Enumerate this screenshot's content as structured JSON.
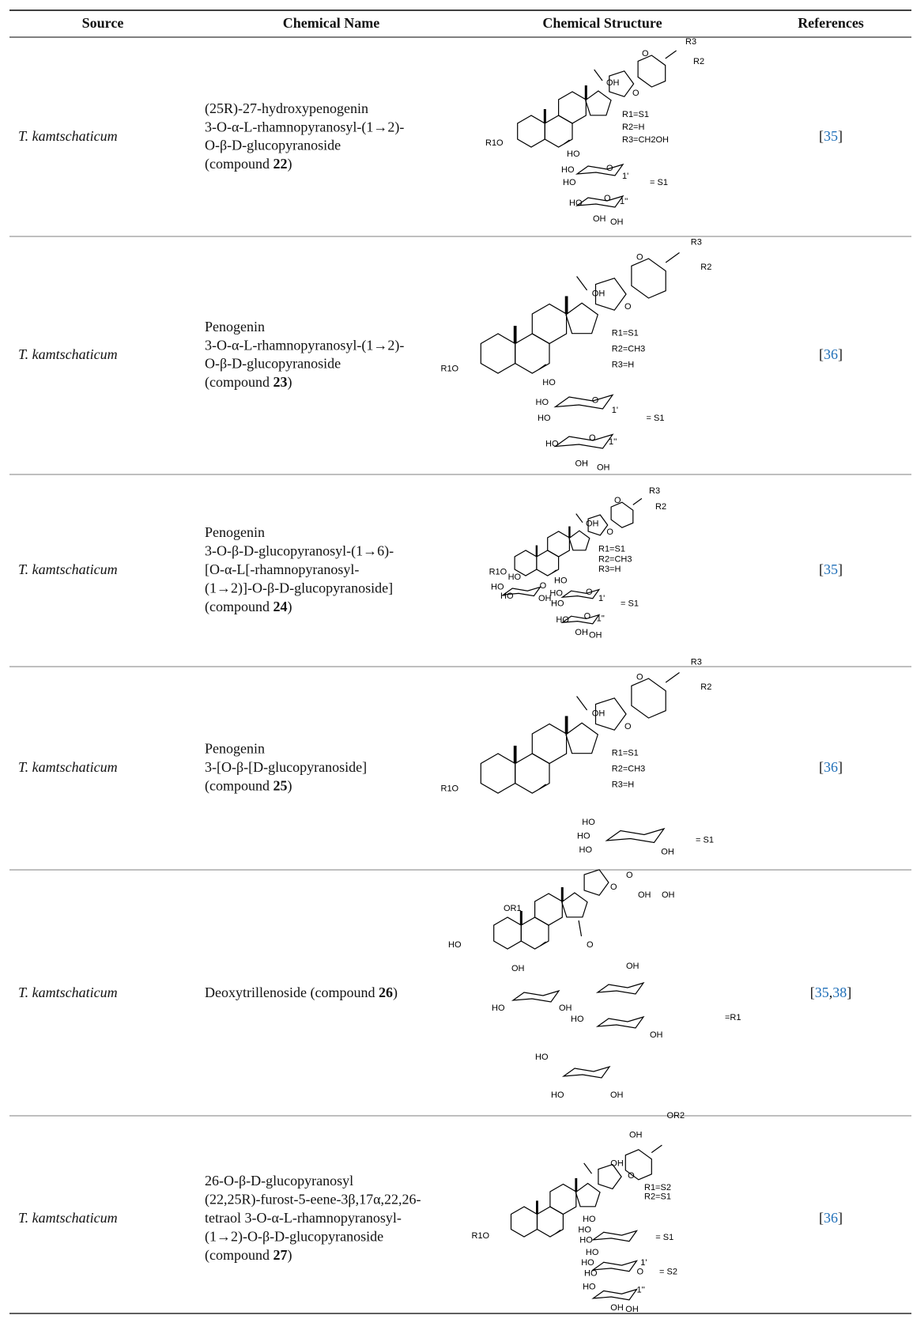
{
  "header": {
    "columns": [
      "Source",
      "Chemical Name",
      "Chemical Structure",
      "References"
    ]
  },
  "rows": [
    {
      "source": "T. kamtschaticum",
      "name_lines": [
        "(25R)-27-hydroxypenogenin",
        "3-O-α-L-rhamnopyranosyl-(1→2)-",
        "O-β-D-glucopyranoside",
        "(compound 22)"
      ],
      "structure_labels": [
        "R3",
        "R2",
        "OH",
        "O",
        "O",
        "R1=S1",
        "R2=H",
        "R3=CH2OH",
        "R1O",
        "HO",
        "HO",
        "HO",
        "O",
        "1'",
        "= S1",
        "HO",
        "O",
        "1''",
        "OH",
        "OH"
      ],
      "references": [
        {
          "text": "["
        },
        {
          "text": "35",
          "link": true
        },
        {
          "text": "]"
        }
      ]
    },
    {
      "source": "T. kamtschaticum",
      "name_lines": [
        "Penogenin",
        "3-O-α-L-rhamnopyranosyl-(1→2)-",
        "O-β-D-glucopyranoside",
        "(compound 23)"
      ],
      "structure_labels": [
        "R3",
        "R2",
        "OH",
        "O",
        "O",
        "R1=S1",
        "R2=CH3",
        "R3=H",
        "R1O",
        "HO",
        "HO",
        "HO",
        "O",
        "1'",
        "= S1",
        "HO",
        "O",
        "1''",
        "OH",
        "OH"
      ],
      "references": [
        {
          "text": "["
        },
        {
          "text": "36",
          "link": true
        },
        {
          "text": "]"
        }
      ]
    },
    {
      "source": "T. kamtschaticum",
      "name_lines": [
        "Penogenin",
        "3-O-β-D-glucopyranosyl-(1→6)-",
        "[O-α-L[-rhamnopyranosyl-",
        "(1→2)]-O-β-D-glucopyranoside]",
        "(compound 24)"
      ],
      "structure_labels": [
        "R3",
        "R2",
        "OH",
        "O",
        "O",
        "R1=S1",
        "R2=CH3",
        "R3=H",
        "R1O",
        "HO",
        "HO",
        "HO",
        "O",
        "1'",
        "= S1",
        "HO",
        "O",
        "1''",
        "OH",
        "OH",
        "HO",
        "HO",
        "HO",
        "OH",
        "O"
      ],
      "references": [
        {
          "text": "["
        },
        {
          "text": "35",
          "link": true
        },
        {
          "text": "]"
        }
      ]
    },
    {
      "source": "T. kamtschaticum",
      "name_lines": [
        "Penogenin",
        "3-[O-β-[D-glucopyranoside]",
        "(compound 25)"
      ],
      "structure_labels": [
        "R3",
        "R2",
        "OH",
        "O",
        "O",
        "R1=S1",
        "R2=CH3",
        "R3=H",
        "R1O",
        "HO",
        "HO",
        "HO",
        "OH",
        "= S1"
      ],
      "references": [
        {
          "text": "["
        },
        {
          "text": "36",
          "link": true
        },
        {
          "text": "]"
        }
      ]
    },
    {
      "source": "T. kamtschaticum",
      "name_lines": [
        "Deoxytrillenoside (compound 26)"
      ],
      "structure_labels": [
        "OR1",
        "HO",
        "O",
        "O",
        "OH",
        "OH",
        "O",
        "OH",
        "HO",
        "OH",
        "OH",
        "HO",
        "OH",
        "HO",
        "HO",
        "OH",
        "=R1"
      ],
      "references": [
        {
          "text": "["
        },
        {
          "text": "35",
          "link": true
        },
        {
          "text": ","
        },
        {
          "text": "38",
          "link": true
        },
        {
          "text": "]"
        }
      ]
    },
    {
      "source": "T. kamtschaticum",
      "name_lines": [
        "26-O-β-D-glucopyranosyl",
        "(22,25R)-furost-5-eene-3β,17α,22,26-",
        "tetraol 3-O-α-L-rhamnopyranosyl-",
        "(1→2)-O-β-D-glucopyranoside",
        "(compound 27)"
      ],
      "structure_labels": [
        "OR2",
        "OH",
        "OH",
        "O",
        "R1=S2",
        "R2=S1",
        "R1O",
        "HO",
        "HO",
        "HO",
        "= S1",
        "HO",
        "HO",
        "HO",
        "O",
        "1'",
        "= S2",
        "HO",
        "1''",
        "OH",
        "OH"
      ],
      "references": [
        {
          "text": "["
        },
        {
          "text": "36",
          "link": true
        },
        {
          "text": "]"
        }
      ]
    }
  ]
}
